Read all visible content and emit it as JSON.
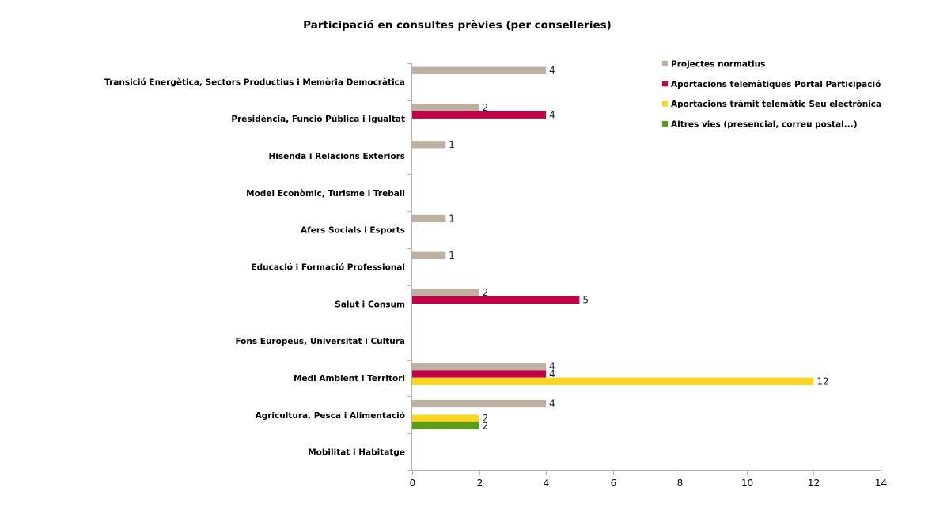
{
  "chart_data": {
    "type": "bar",
    "orientation": "horizontal",
    "title": "Participació en consultes prèvies (per conselleries)",
    "xlabel": "",
    "ylabel": "",
    "xlim": [
      0,
      14
    ],
    "xticks": [
      0,
      2,
      4,
      6,
      8,
      10,
      12,
      14
    ],
    "grid": false,
    "legend_position": "top-right",
    "categories": [
      "Transició Energètica, Sectors Productius i Memòria Democràtica",
      "Presidència, Funció Pública i Igualtat",
      "Hisenda i Relacions Exteriors",
      "Model Econòmic, Turisme i Treball",
      "Afers Socials i Esports",
      "Educació i Formació Professional",
      "Salut i Consum",
      "Fons Europeus, Universitat i Cultura",
      "Medi Ambient i Territori",
      "Agricultura, Pesca i Alimentació",
      "Mobilitat i Habitatge"
    ],
    "series": [
      {
        "name": "Projectes normatius",
        "color": "#bfb1a1",
        "values": [
          4,
          2,
          1,
          null,
          1,
          1,
          2,
          null,
          4,
          4,
          null
        ]
      },
      {
        "name": "Aportacions telemàtiques Portal Participació",
        "color": "#c4004b",
        "values": [
          null,
          4,
          null,
          null,
          null,
          null,
          5,
          null,
          4,
          null,
          null
        ]
      },
      {
        "name": "Aportacions tràmit telemàtic Seu electrònica",
        "color": "#ffd51f",
        "values": [
          null,
          null,
          null,
          null,
          null,
          null,
          null,
          null,
          12,
          2,
          null
        ]
      },
      {
        "name": "Altres vies (presencial, correu postal...)",
        "color": "#5a9b1c",
        "values": [
          null,
          null,
          null,
          null,
          null,
          null,
          null,
          null,
          null,
          2,
          null
        ]
      }
    ]
  }
}
